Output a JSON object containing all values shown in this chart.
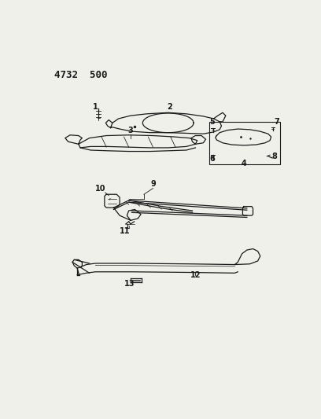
{
  "title": "4732  500",
  "bg_color": "#f0f0eb",
  "line_color": "#1a1a1a",
  "text_color": "#1a1a1a",
  "figsize": [
    4.08,
    5.33
  ],
  "dpi": 100
}
